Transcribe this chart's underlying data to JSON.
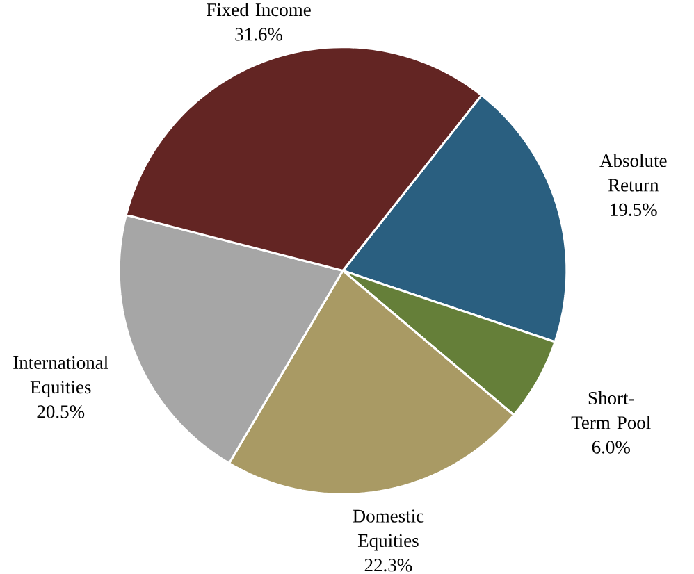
{
  "chart_data": {
    "type": "pie",
    "categories": [
      "Absolute Return",
      "Short-Term Pool",
      "Domestic Equities",
      "International Equities",
      "Fixed Income"
    ],
    "values": [
      19.5,
      6.0,
      22.3,
      20.5,
      31.6
    ],
    "value_labels": [
      "19.5%",
      "6.0%",
      "22.3%",
      "20.5%",
      "31.6%"
    ],
    "colors": [
      "#2a5f80",
      "#657f39",
      "#a99a64",
      "#a6a6a6",
      "#632523"
    ]
  }
}
